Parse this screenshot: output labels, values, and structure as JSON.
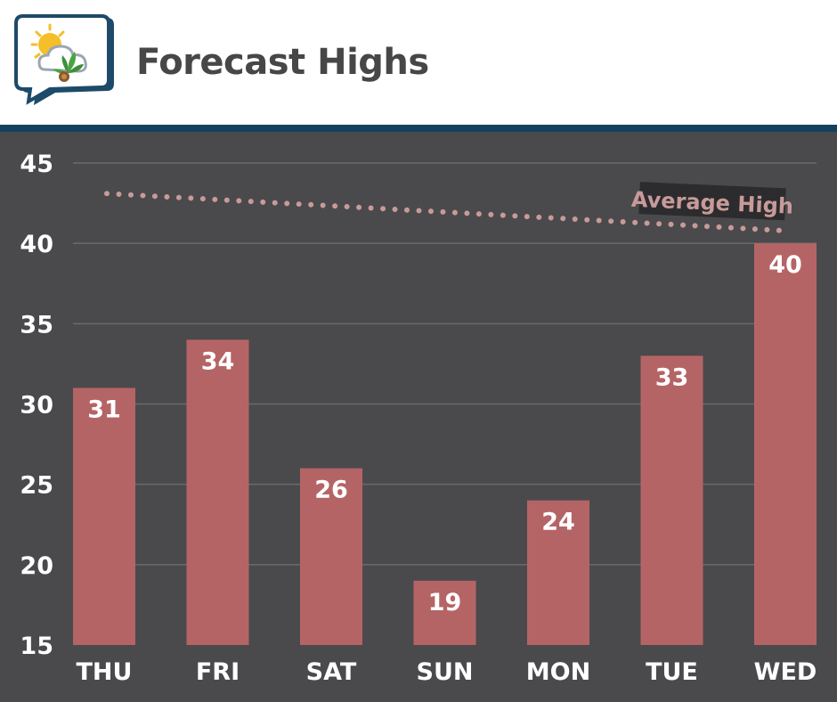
{
  "header": {
    "title": "Forecast Highs",
    "logo_icon": "sun-cloud-plant-speech-bubble-icon"
  },
  "colors": {
    "background": "#4a4a4c",
    "header_background": "#ffffff",
    "header_rule": "#13405f",
    "bar": "#b56466",
    "average_line": "#c89a9a",
    "grid": "#6a6a6c",
    "text": "#ffffff",
    "title": "#474747"
  },
  "chart_data": {
    "type": "bar",
    "title": "Forecast Highs",
    "categories": [
      "THU",
      "FRI",
      "SAT",
      "SUN",
      "MON",
      "TUE",
      "WED"
    ],
    "values": [
      31,
      34,
      26,
      19,
      24,
      33,
      40
    ],
    "data_labels": [
      "31",
      "34",
      "26",
      "19",
      "24",
      "33",
      "40"
    ],
    "ylim": [
      15,
      45
    ],
    "yticks": [
      15,
      20,
      25,
      30,
      35,
      40,
      45
    ],
    "ytick_labels": [
      "15",
      "20",
      "25",
      "30",
      "35",
      "40",
      "45"
    ],
    "grid": true,
    "reference_line": {
      "label": "Average High",
      "style": "dotted",
      "start_value": 43.1,
      "end_value": 40.8
    }
  }
}
